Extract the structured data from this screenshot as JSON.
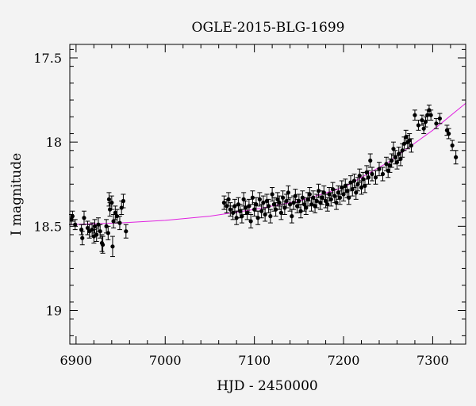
{
  "chart_data": {
    "type": "scatter",
    "title": "OGLE-2015-BLG-1699",
    "xlabel": "HJD - 2450000",
    "ylabel": "I magnitude",
    "xlim": [
      6893,
      7337
    ],
    "ylim": [
      19.2,
      17.42
    ],
    "y_inverted": true,
    "grid": false,
    "xticks": [
      6900,
      7000,
      7100,
      7200,
      7300
    ],
    "yticks": [
      17.5,
      18,
      18.5,
      19
    ],
    "xtick_labels": [
      "6900",
      "7000",
      "7100",
      "7200",
      "7300"
    ],
    "ytick_labels": [
      "17.5",
      "18",
      "18.5",
      "19"
    ],
    "colors": {
      "points": "#000000",
      "model": "#e020e0",
      "background": "#f3f3f3"
    },
    "series": [
      {
        "kind": "points_with_errorbars",
        "points": [
          [
            6893,
            18.46,
            0.03
          ],
          [
            6896,
            18.44,
            0.03
          ],
          [
            6899,
            18.49,
            0.03
          ],
          [
            6906,
            18.52,
            0.03
          ],
          [
            6907,
            18.57,
            0.04
          ],
          [
            6909,
            18.45,
            0.04
          ],
          [
            6913,
            18.51,
            0.04
          ],
          [
            6915,
            18.53,
            0.04
          ],
          [
            6918,
            18.52,
            0.04
          ],
          [
            6920,
            18.56,
            0.04
          ],
          [
            6921,
            18.5,
            0.04
          ],
          [
            6923,
            18.55,
            0.04
          ],
          [
            6925,
            18.49,
            0.04
          ],
          [
            6927,
            18.53,
            0.04
          ],
          [
            6929,
            18.6,
            0.05
          ],
          [
            6930,
            18.61,
            0.05
          ],
          [
            6934,
            18.5,
            0.04
          ],
          [
            6936,
            18.54,
            0.04
          ],
          [
            6937,
            18.34,
            0.04
          ],
          [
            6938,
            18.4,
            0.04
          ],
          [
            6940,
            18.36,
            0.04
          ],
          [
            6941,
            18.62,
            0.06
          ],
          [
            6942,
            18.47,
            0.04
          ],
          [
            6944,
            18.42,
            0.04
          ],
          [
            6946,
            18.44,
            0.04
          ],
          [
            6949,
            18.48,
            0.04
          ],
          [
            6951,
            18.39,
            0.04
          ],
          [
            6953,
            18.35,
            0.04
          ],
          [
            6956,
            18.53,
            0.04
          ],
          [
            7066,
            18.36,
            0.04
          ],
          [
            7069,
            18.38,
            0.04
          ],
          [
            7071,
            18.34,
            0.04
          ],
          [
            7073,
            18.4,
            0.04
          ],
          [
            7076,
            18.42,
            0.04
          ],
          [
            7078,
            18.38,
            0.04
          ],
          [
            7080,
            18.45,
            0.04
          ],
          [
            7082,
            18.37,
            0.04
          ],
          [
            7084,
            18.41,
            0.04
          ],
          [
            7086,
            18.44,
            0.04
          ],
          [
            7088,
            18.34,
            0.04
          ],
          [
            7090,
            18.39,
            0.04
          ],
          [
            7092,
            18.42,
            0.04
          ],
          [
            7094,
            18.38,
            0.04
          ],
          [
            7096,
            18.47,
            0.04
          ],
          [
            7098,
            18.33,
            0.04
          ],
          [
            7100,
            18.4,
            0.04
          ],
          [
            7102,
            18.37,
            0.04
          ],
          [
            7104,
            18.45,
            0.04
          ],
          [
            7106,
            18.34,
            0.04
          ],
          [
            7108,
            18.41,
            0.04
          ],
          [
            7110,
            18.36,
            0.04
          ],
          [
            7112,
            18.43,
            0.04
          ],
          [
            7114,
            18.35,
            0.04
          ],
          [
            7116,
            18.38,
            0.04
          ],
          [
            7118,
            18.44,
            0.04
          ],
          [
            7120,
            18.31,
            0.04
          ],
          [
            7122,
            18.37,
            0.04
          ],
          [
            7124,
            18.4,
            0.04
          ],
          [
            7126,
            18.34,
            0.04
          ],
          [
            7128,
            18.36,
            0.04
          ],
          [
            7130,
            18.42,
            0.04
          ],
          [
            7132,
            18.33,
            0.04
          ],
          [
            7134,
            18.39,
            0.04
          ],
          [
            7136,
            18.35,
            0.04
          ],
          [
            7138,
            18.3,
            0.04
          ],
          [
            7140,
            18.37,
            0.04
          ],
          [
            7142,
            18.44,
            0.04
          ],
          [
            7144,
            18.36,
            0.04
          ],
          [
            7146,
            18.32,
            0.04
          ],
          [
            7148,
            18.38,
            0.04
          ],
          [
            7150,
            18.35,
            0.04
          ],
          [
            7152,
            18.41,
            0.04
          ],
          [
            7154,
            18.33,
            0.04
          ],
          [
            7156,
            18.37,
            0.04
          ],
          [
            7158,
            18.39,
            0.04
          ],
          [
            7160,
            18.34,
            0.04
          ],
          [
            7162,
            18.31,
            0.04
          ],
          [
            7164,
            18.37,
            0.04
          ],
          [
            7166,
            18.33,
            0.04
          ],
          [
            7168,
            18.38,
            0.04
          ],
          [
            7170,
            18.35,
            0.04
          ],
          [
            7172,
            18.29,
            0.04
          ],
          [
            7174,
            18.36,
            0.04
          ],
          [
            7176,
            18.33,
            0.04
          ],
          [
            7178,
            18.3,
            0.04
          ],
          [
            7180,
            18.35,
            0.04
          ],
          [
            7182,
            18.37,
            0.04
          ],
          [
            7184,
            18.31,
            0.04
          ],
          [
            7186,
            18.34,
            0.04
          ],
          [
            7188,
            18.28,
            0.04
          ],
          [
            7190,
            18.32,
            0.04
          ],
          [
            7192,
            18.36,
            0.04
          ],
          [
            7194,
            18.3,
            0.04
          ],
          [
            7196,
            18.33,
            0.04
          ],
          [
            7198,
            18.27,
            0.04
          ],
          [
            7200,
            18.31,
            0.04
          ],
          [
            7202,
            18.26,
            0.04
          ],
          [
            7204,
            18.29,
            0.04
          ],
          [
            7206,
            18.33,
            0.04
          ],
          [
            7208,
            18.24,
            0.04
          ],
          [
            7210,
            18.28,
            0.04
          ],
          [
            7212,
            18.23,
            0.04
          ],
          [
            7214,
            18.3,
            0.04
          ],
          [
            7216,
            18.25,
            0.04
          ],
          [
            7218,
            18.2,
            0.04
          ],
          [
            7220,
            18.27,
            0.04
          ],
          [
            7222,
            18.22,
            0.04
          ],
          [
            7224,
            18.26,
            0.04
          ],
          [
            7226,
            18.18,
            0.04
          ],
          [
            7228,
            18.21,
            0.04
          ],
          [
            7230,
            18.11,
            0.04
          ],
          [
            7232,
            18.19,
            0.04
          ],
          [
            7236,
            18.21,
            0.04
          ],
          [
            7240,
            18.16,
            0.04
          ],
          [
            7244,
            18.19,
            0.04
          ],
          [
            7248,
            18.13,
            0.04
          ],
          [
            7250,
            18.17,
            0.04
          ],
          [
            7252,
            18.14,
            0.04
          ],
          [
            7254,
            18.11,
            0.04
          ],
          [
            7256,
            18.04,
            0.04
          ],
          [
            7258,
            18.09,
            0.04
          ],
          [
            7260,
            18.12,
            0.04
          ],
          [
            7262,
            18.07,
            0.04
          ],
          [
            7264,
            18.1,
            0.04
          ],
          [
            7266,
            18.05,
            0.04
          ],
          [
            7268,
            18.01,
            0.04
          ],
          [
            7270,
            17.97,
            0.04
          ],
          [
            7272,
            18.0,
            0.04
          ],
          [
            7274,
            17.99,
            0.04
          ],
          [
            7276,
            18.02,
            0.04
          ],
          [
            7280,
            17.84,
            0.03
          ],
          [
            7284,
            17.9,
            0.03
          ],
          [
            7288,
            17.87,
            0.03
          ],
          [
            7290,
            17.92,
            0.03
          ],
          [
            7292,
            17.88,
            0.03
          ],
          [
            7294,
            17.84,
            0.03
          ],
          [
            7296,
            17.81,
            0.03
          ],
          [
            7298,
            17.84,
            0.03
          ],
          [
            7304,
            17.89,
            0.03
          ],
          [
            7308,
            17.86,
            0.03
          ],
          [
            7316,
            17.93,
            0.03
          ],
          [
            7318,
            17.95,
            0.03
          ],
          [
            7322,
            18.02,
            0.03
          ],
          [
            7326,
            18.09,
            0.04
          ]
        ]
      },
      {
        "kind": "model_curve",
        "points": [
          [
            6893,
            18.49
          ],
          [
            6950,
            18.48
          ],
          [
            7000,
            18.465
          ],
          [
            7050,
            18.44
          ],
          [
            7100,
            18.4
          ],
          [
            7150,
            18.35
          ],
          [
            7200,
            18.27
          ],
          [
            7250,
            18.12
          ],
          [
            7300,
            17.93
          ],
          [
            7337,
            17.77
          ]
        ]
      }
    ]
  }
}
